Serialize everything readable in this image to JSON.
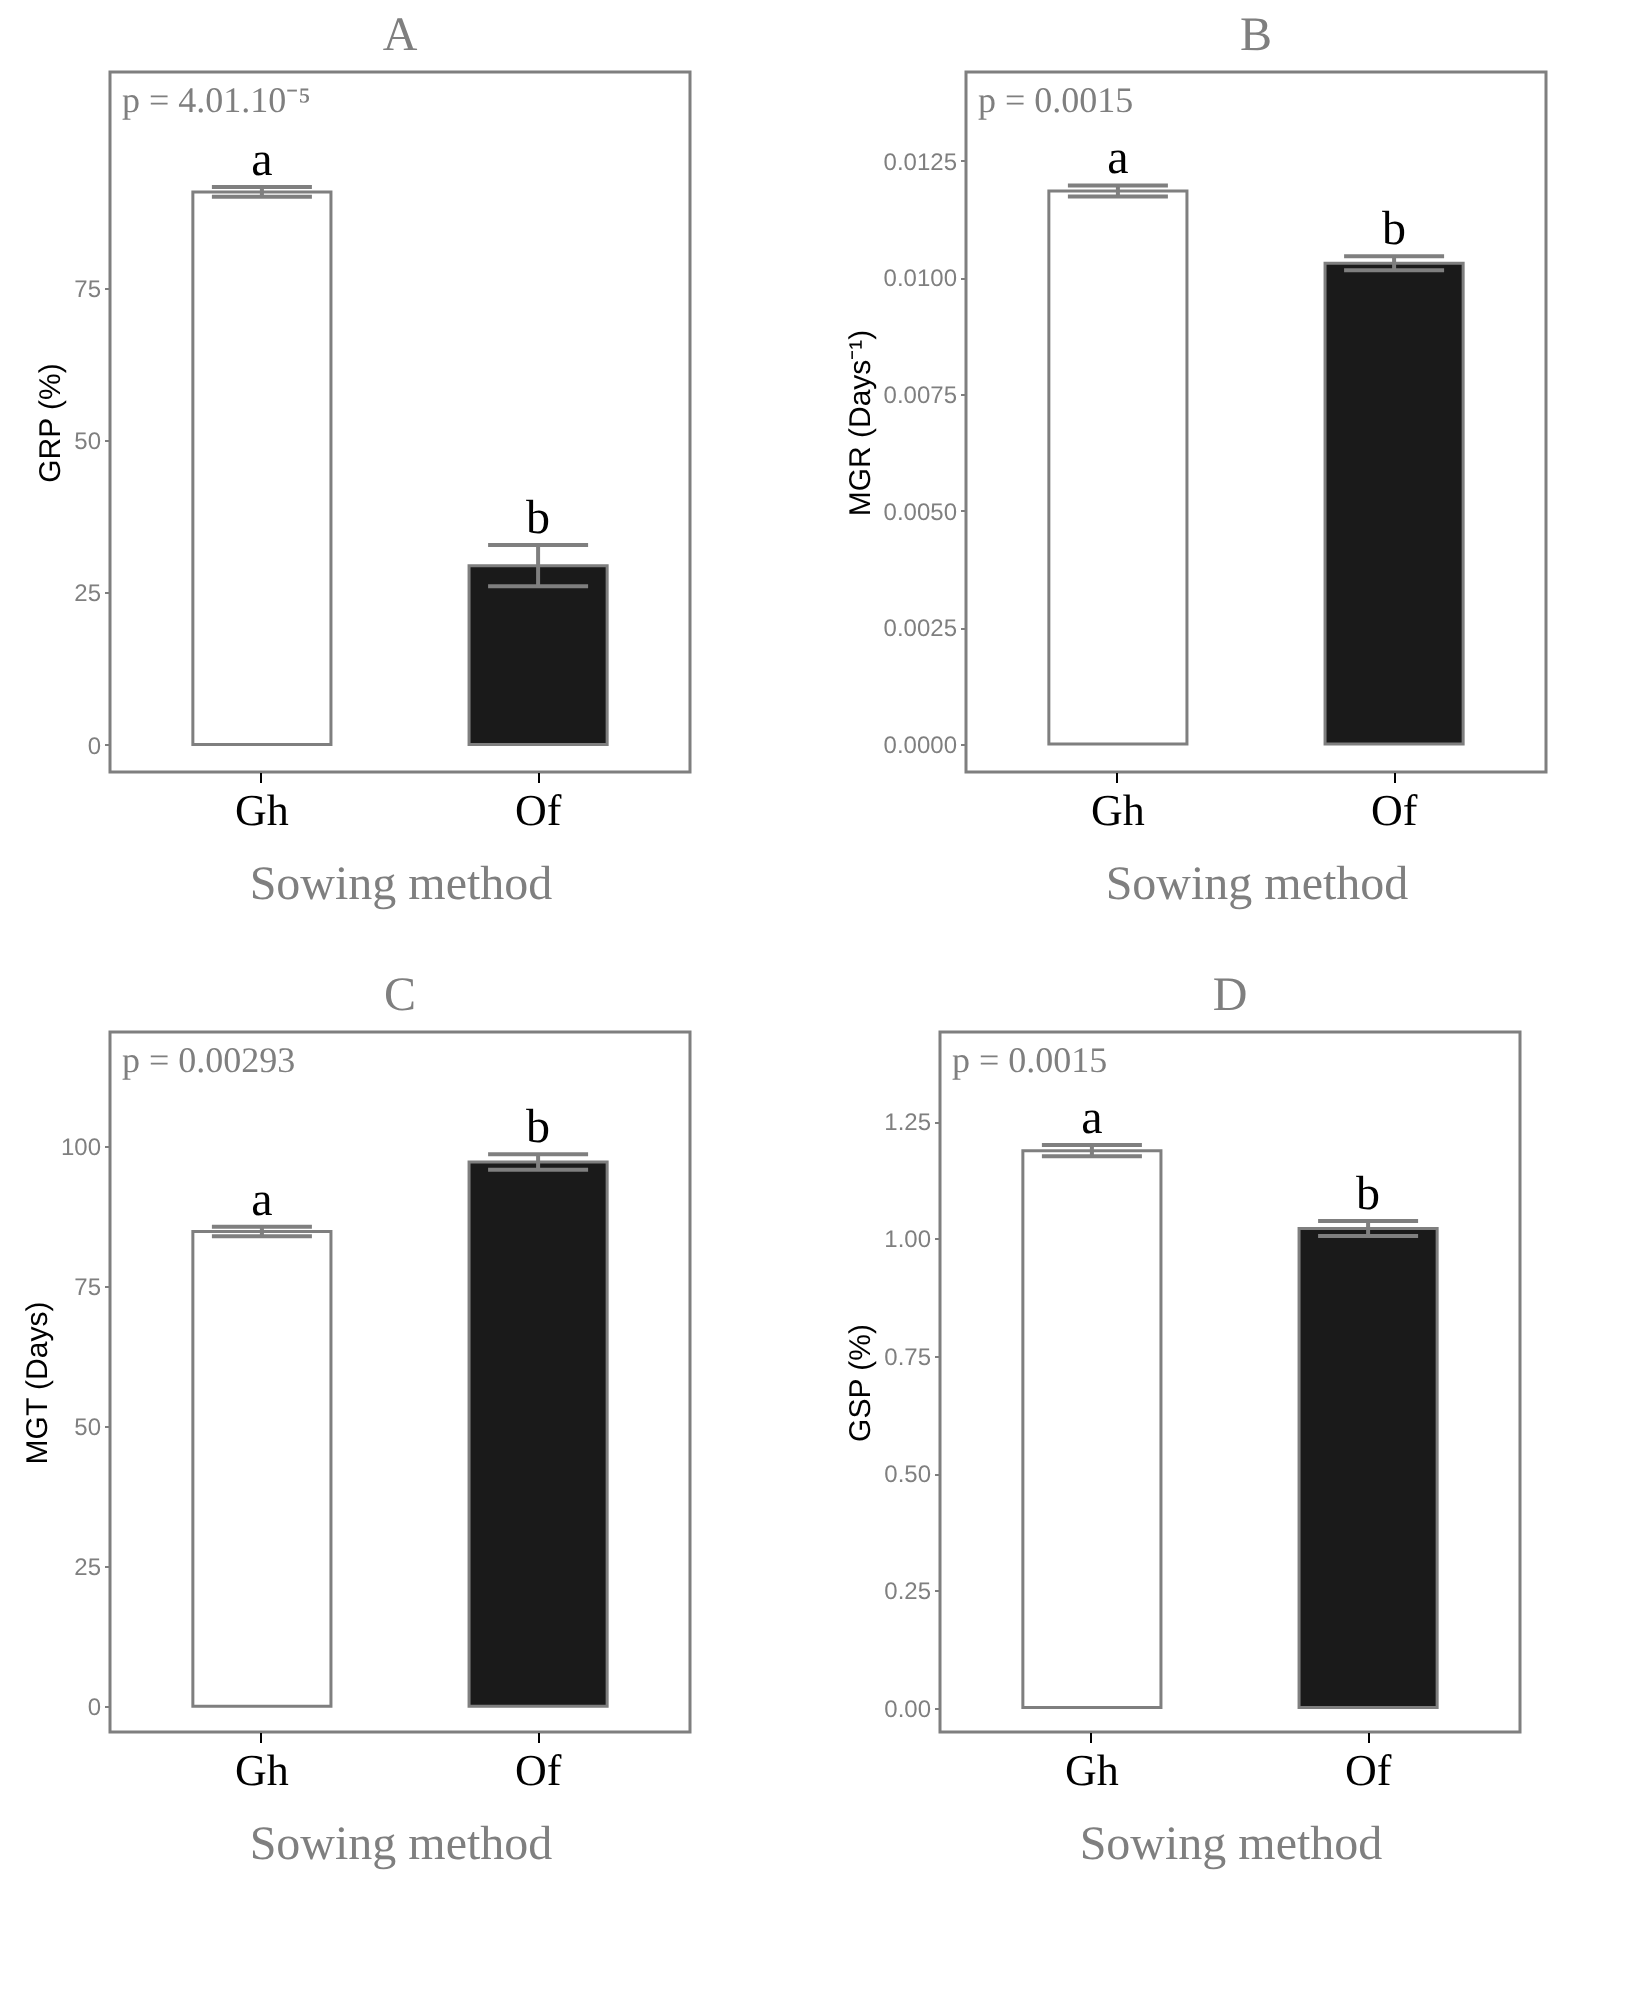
{
  "chart_data": [
    {
      "type": "bar",
      "title": "A",
      "xlabel": "Sowing method",
      "ylabel": "GRP (%)",
      "categories": [
        "Gh",
        "Of"
      ],
      "values": [
        90.8,
        29.4
      ],
      "errors": [
        0.8,
        3.4
      ],
      "colors": [
        "#ffffff",
        "#1a1a1a"
      ],
      "ylim": [
        -4.5,
        110.5
      ],
      "yticks": [
        0,
        25,
        50,
        75
      ],
      "annotations": [
        "p = 4.01.10⁻⁵",
        {
          "text": "a",
          "x": "Gh",
          "y": 91.6
        },
        {
          "text": "b",
          "x": "Of",
          "y": 32.8
        }
      ]
    },
    {
      "type": "bar",
      "title": "B",
      "xlabel": "Sowing method",
      "ylabel": "MGR (Days⁻¹)",
      "categories": [
        "Gh",
        "Of"
      ],
      "values": [
        0.01185,
        0.0103
      ],
      "errors": [
        0.00012,
        0.00015
      ],
      "colors": [
        "#ffffff",
        "#1a1a1a"
      ],
      "ylim": [
        -0.0006,
        0.0144
      ],
      "yticks": [
        {
          "value": 0,
          "label": "0.0000"
        },
        0.0025,
        {
          "value": 0.005,
          "label": "0.0050"
        },
        0.0075,
        {
          "value": 0.01,
          "label": "0.0100"
        },
        0.0125
      ],
      "annotations": [
        "p = 0.0015",
        {
          "text": "a",
          "x": "Gh",
          "y": 0.01197
        },
        {
          "text": "b",
          "x": "Of",
          "y": 0.01045
        }
      ]
    },
    {
      "type": "bar",
      "title": "C",
      "xlabel": "Sowing method",
      "ylabel": "MGT  (Days)",
      "categories": [
        "Gh",
        "Of"
      ],
      "values": [
        84.7,
        97.1
      ],
      "errors": [
        0.85,
        1.4
      ],
      "colors": [
        "#ffffff",
        "#1a1a1a"
      ],
      "ylim": [
        -4.6,
        120.3
      ],
      "yticks": [
        0,
        25,
        50,
        75,
        100
      ],
      "annotations": [
        "p = 0.00293",
        {
          "text": "a",
          "x": "Gh",
          "y": 85.55
        },
        {
          "text": "b",
          "x": "Of",
          "y": 98.5
        }
      ]
    },
    {
      "type": "bar",
      "title": "D",
      "xlabel": "Sowing method",
      "ylabel": "GSP (%)",
      "categories": [
        "Gh",
        "Of"
      ],
      "values": [
        1.187,
        1.021
      ],
      "errors": [
        0.012,
        0.016
      ],
      "colors": [
        "#ffffff",
        "#1a1a1a"
      ],
      "ylim": [
        -0.052,
        1.44
      ],
      "yticks": [
        {
          "value": 0,
          "label": "0.00"
        },
        0.25,
        {
          "value": 0.5,
          "label": "0.50"
        },
        0.75,
        {
          "value": 1,
          "label": "1.00"
        },
        1.25
      ],
      "annotations": [
        "p = 0.0015",
        {
          "text": "a",
          "x": "Gh",
          "y": 1.199
        },
        {
          "text": "b",
          "x": "Of",
          "y": 1.037
        }
      ]
    }
  ]
}
